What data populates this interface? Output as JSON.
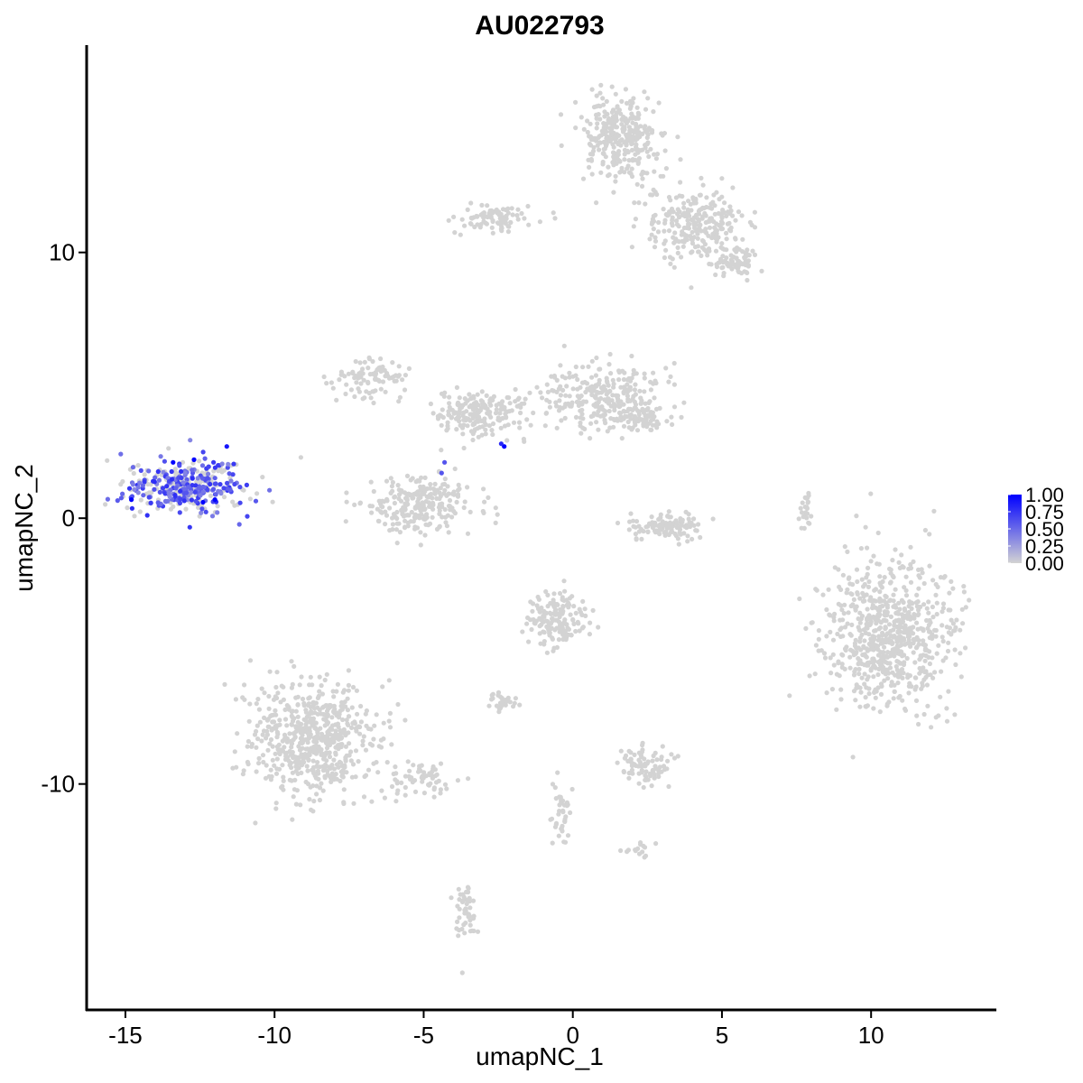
{
  "chart_data": {
    "type": "scatter",
    "title": "AU022793",
    "xlabel": "umapNC_1",
    "ylabel": "umapNC_2",
    "xlim": [
      -16.3,
      14.2
    ],
    "ylim": [
      -18.5,
      17.8
    ],
    "x_ticks": [
      -15,
      -10,
      -5,
      0,
      5,
      10
    ],
    "x_tick_labels": [
      "-15",
      "-10",
      "-5",
      "0",
      "5",
      "10"
    ],
    "y_ticks": [
      -10,
      0,
      10
    ],
    "y_tick_labels": [
      "-10",
      "0",
      "10"
    ],
    "grid": false,
    "color_scale": {
      "low": "#D3D3D3",
      "high": "#0000FF",
      "range": [
        0,
        1
      ],
      "ticks": [
        1.0,
        0.75,
        0.5,
        0.25,
        0.0
      ],
      "tick_labels": [
        "1.00",
        "0.75",
        "0.50",
        "0.25",
        "0.00"
      ],
      "placement": "right"
    },
    "clusters": [
      {
        "name_hint": "left-expressing",
        "cx": -13.0,
        "cy": 1.2,
        "rx": 1.7,
        "ry": 0.9,
        "n": 360,
        "expr": 0.55
      },
      {
        "name_hint": "top-right-upper",
        "cx": 1.6,
        "cy": 14.3,
        "rx": 1.2,
        "ry": 1.2,
        "n": 320,
        "expr": 0
      },
      {
        "name_hint": "top-right-arm",
        "cx": 4.1,
        "cy": 11.0,
        "rx": 1.4,
        "ry": 1.2,
        "n": 260,
        "expr": 0
      },
      {
        "name_hint": "top-right-tail",
        "cx": 5.5,
        "cy": 9.6,
        "rx": 0.6,
        "ry": 0.5,
        "n": 70,
        "expr": 0
      },
      {
        "name_hint": "top-left-arm",
        "cx": -2.6,
        "cy": 11.3,
        "rx": 1.0,
        "ry": 0.45,
        "n": 90,
        "expr": 0
      },
      {
        "name_hint": "mid-left-wing",
        "cx": -6.8,
        "cy": 5.3,
        "rx": 1.0,
        "ry": 0.6,
        "n": 90,
        "expr": 0
      },
      {
        "name_hint": "mid-center",
        "cx": -3.2,
        "cy": 3.9,
        "rx": 1.4,
        "ry": 0.7,
        "n": 200,
        "expr": 0
      },
      {
        "name_hint": "mid-right-wing",
        "cx": 1.0,
        "cy": 4.6,
        "rx": 1.6,
        "ry": 1.0,
        "n": 260,
        "expr": 0
      },
      {
        "name_hint": "mid-right-tip",
        "cx": 2.4,
        "cy": 3.8,
        "rx": 0.6,
        "ry": 0.5,
        "n": 70,
        "expr": 0
      },
      {
        "name_hint": "mid-lower-left",
        "cx": -5.2,
        "cy": 0.5,
        "rx": 1.5,
        "ry": 0.9,
        "n": 250,
        "expr": 0
      },
      {
        "name_hint": "crescent",
        "cx": 3.2,
        "cy": -0.3,
        "rx": 1.0,
        "ry": 0.45,
        "n": 110,
        "expr": 0
      },
      {
        "name_hint": "small-right-streak",
        "cx": 7.8,
        "cy": 0.3,
        "rx": 0.2,
        "ry": 0.7,
        "n": 25,
        "expr": 0
      },
      {
        "name_hint": "right-large",
        "cx": 10.6,
        "cy": -4.3,
        "rx": 1.8,
        "ry": 2.3,
        "n": 700,
        "expr": 0
      },
      {
        "name_hint": "lower-left-large",
        "cx": -8.7,
        "cy": -8.4,
        "rx": 1.7,
        "ry": 1.8,
        "n": 600,
        "expr": 0
      },
      {
        "name_hint": "lower-left-tail",
        "cx": -5.0,
        "cy": -9.8,
        "rx": 1.0,
        "ry": 0.5,
        "n": 60,
        "expr": 0
      },
      {
        "name_hint": "lower-mid-upper",
        "cx": -0.5,
        "cy": -3.8,
        "rx": 0.8,
        "ry": 0.9,
        "n": 160,
        "expr": 0
      },
      {
        "name_hint": "lower-mid-small",
        "cx": -2.4,
        "cy": -6.9,
        "rx": 0.35,
        "ry": 0.25,
        "n": 35,
        "expr": 0
      },
      {
        "name_hint": "lower-mid-right",
        "cx": 2.4,
        "cy": -9.3,
        "rx": 0.7,
        "ry": 0.7,
        "n": 90,
        "expr": 0
      },
      {
        "name_hint": "lower-bottom-stem",
        "cx": -3.6,
        "cy": -14.8,
        "rx": 0.3,
        "ry": 0.8,
        "n": 50,
        "expr": 0
      },
      {
        "name_hint": "lower-center-stem",
        "cx": -0.4,
        "cy": -11.0,
        "rx": 0.25,
        "ry": 1.0,
        "n": 40,
        "expr": 0
      },
      {
        "name_hint": "lower-right-bit",
        "cx": 2.3,
        "cy": -12.5,
        "rx": 0.4,
        "ry": 0.2,
        "n": 15,
        "expr": 0
      }
    ],
    "highlight_points": [
      {
        "x": -2.3,
        "y": 2.7,
        "value": 1.0
      },
      {
        "x": -2.4,
        "y": 2.8,
        "value": 0.8
      },
      {
        "x": -4.3,
        "y": 2.1,
        "value": 0.6
      },
      {
        "x": -4.4,
        "y": 1.7,
        "value": 0.6
      },
      {
        "x": -14.8,
        "y": 0.7,
        "value": 1.0
      },
      {
        "x": -13.4,
        "y": 2.1,
        "value": 1.0
      },
      {
        "x": -12.7,
        "y": 2.2,
        "value": 1.0
      },
      {
        "x": -12.0,
        "y": 0.7,
        "value": 1.0
      },
      {
        "x": -11.6,
        "y": 2.7,
        "value": 0.9
      },
      {
        "x": -12.4,
        "y": 0.6,
        "value": 1.0
      }
    ]
  }
}
